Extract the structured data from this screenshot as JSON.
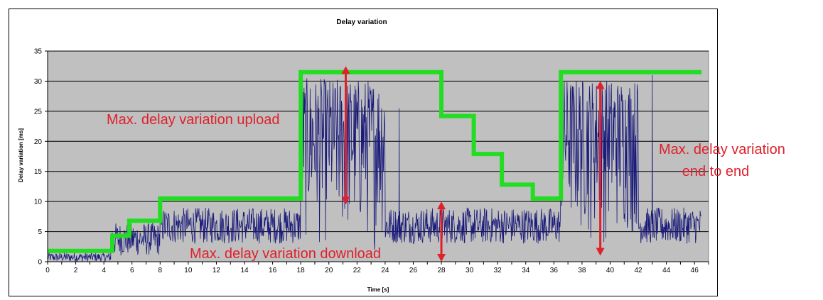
{
  "chart_data": {
    "type": "line",
    "title": "Delay variation",
    "xlabel": "Time [s]",
    "ylabel": "Delay variation [ms]",
    "xlim": [
      0,
      47
    ],
    "ylim": [
      0,
      35
    ],
    "xticks": [
      0,
      2,
      4,
      6,
      8,
      10,
      12,
      14,
      16,
      18,
      20,
      22,
      24,
      26,
      28,
      30,
      32,
      34,
      36,
      38,
      40,
      42,
      44,
      46
    ],
    "yticks": [
      0,
      5,
      10,
      15,
      20,
      25,
      30,
      35
    ],
    "grid": "horizontal",
    "plot_background": "#c0c0c0",
    "series": [
      {
        "kind": "step",
        "color": "#22dd22",
        "x": [
          0,
          4.6,
          4.6,
          5.8,
          5.8,
          8.0,
          8.0,
          18.0,
          18.0,
          28.0,
          28.0,
          30.3,
          30.3,
          32.3,
          32.3,
          34.5,
          34.5,
          36.5,
          36.5,
          46.5
        ],
        "y": [
          1.8,
          1.8,
          4.3,
          4.3,
          6.8,
          6.8,
          10.5,
          10.5,
          31.5,
          31.5,
          24.2,
          24.2,
          17.9,
          17.9,
          12.8,
          12.8,
          10.5,
          10.5,
          31.5,
          31.5
        ]
      },
      {
        "kind": "noise",
        "color": "#1a1a7a",
        "segments": [
          {
            "x_start": 0.0,
            "x_end": 4.5,
            "low": 0.0,
            "high": 1.5
          },
          {
            "x_start": 4.5,
            "x_end": 8.0,
            "low": 1.0,
            "high": 6.5
          },
          {
            "x_start": 8.0,
            "x_end": 18.0,
            "low": 3.0,
            "high": 9.0
          },
          {
            "x_start": 18.0,
            "x_end": 24.0,
            "low": 1.0,
            "high": 30.5
          },
          {
            "x_start": 24.0,
            "x_end": 36.5,
            "low": 3.0,
            "high": 9.0
          },
          {
            "x_start": 36.5,
            "x_end": 42.0,
            "low": 2.0,
            "high": 30.5
          },
          {
            "x_start": 42.0,
            "x_end": 46.5,
            "low": 3.0,
            "high": 9.0
          }
        ],
        "spikes": [
          {
            "x": 25.0,
            "y": 25.5
          },
          {
            "x": 43.0,
            "y": 31.0
          }
        ]
      }
    ],
    "arrows": [
      {
        "x": 21.2,
        "y1": 32.5,
        "y2": 9.5,
        "color": "#e0202a"
      },
      {
        "x": 28.0,
        "y1": 10.0,
        "y2": 0.0,
        "color": "#e0202a"
      },
      {
        "x": 39.3,
        "y1": 30.0,
        "y2": 1.0,
        "color": "#e0202a"
      }
    ],
    "annotations": [
      {
        "id": "upload",
        "text": "Max. delay variation upload"
      },
      {
        "id": "download",
        "text": "Max. delay variation download"
      },
      {
        "id": "e2e_1",
        "text": "Max. delay variation"
      },
      {
        "id": "e2e_2",
        "text": "end to end"
      }
    ]
  }
}
